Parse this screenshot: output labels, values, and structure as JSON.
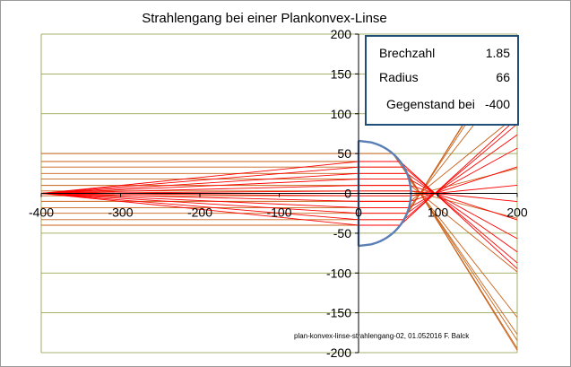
{
  "chart_data": {
    "type": "line",
    "title": "Strahlengang bei einer Plankonvex-Linse",
    "xlim": [
      -400,
      200
    ],
    "ylim": [
      -200,
      200
    ],
    "x_ticks": [
      "-400",
      "-300",
      "-200",
      "-100",
      "0",
      "100",
      "200"
    ],
    "y_ticks": [
      "200",
      "150",
      "100",
      "50",
      "0",
      "-50",
      "-100",
      "-150",
      "-200"
    ],
    "grid": "horizontal",
    "colors": {
      "rays": "#ff0000",
      "parallel_rays": "#c8621a",
      "lens": "#5b7fb5",
      "axis": "#000000"
    },
    "lens": {
      "type": "plano-convex",
      "plane_x": 0,
      "radius": 66,
      "aperture": 66
    },
    "parameters": [
      {
        "label": "Brechzahl",
        "value": "1.85"
      },
      {
        "label": "Radius",
        "value": "66"
      },
      {
        "label": "Gegenstand bei",
        "value": "-400"
      }
    ],
    "parallel_ray_heights": [
      50,
      40,
      33,
      25,
      18,
      10,
      3,
      -3,
      -10,
      -18,
      -25,
      -33,
      -40
    ],
    "point_source_heights": [
      40,
      33,
      25,
      18,
      10,
      3,
      -3,
      -10,
      -18,
      -25,
      -33,
      -40
    ],
    "focus_x": 130,
    "image_x": 135,
    "credit": "plan-konvex-linse-strahlengang-02, 01.052016 F. Balck"
  }
}
